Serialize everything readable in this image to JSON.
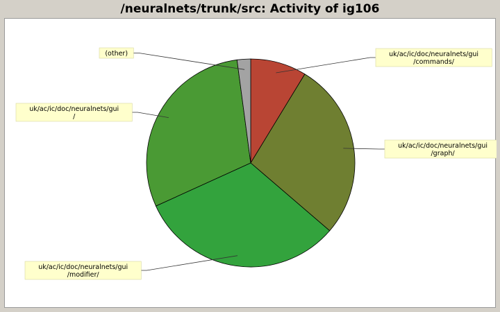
{
  "title": "/neuralnets/trunk/src: Activity of ig106",
  "chart_data": {
    "type": "pie",
    "title": "/neuralnets/trunk/src: Activity of ig106",
    "slices": [
      {
        "label": [
          "uk/ac/ic/doc/neuralnets/gui",
          "/commands/"
        ],
        "value": 8.7,
        "color": "#b94534"
      },
      {
        "label": [
          "uk/ac/ic/doc/neuralnets/gui",
          "/graph/"
        ],
        "value": 27.6,
        "color": "#6f7f31"
      },
      {
        "label": [
          "uk/ac/ic/doc/neuralnets/gui",
          "/modifier/"
        ],
        "value": 31.9,
        "color": "#33a33d"
      },
      {
        "label": [
          "uk/ac/ic/doc/neuralnets/gui",
          "/"
        ],
        "value": 29.7,
        "color": "#4a9a34"
      },
      {
        "label": [
          "(other)"
        ],
        "value": 2.1,
        "color": "#a3a3a3"
      }
    ],
    "label_background": "#ffffcc",
    "label_border": "#d8d8a0"
  }
}
